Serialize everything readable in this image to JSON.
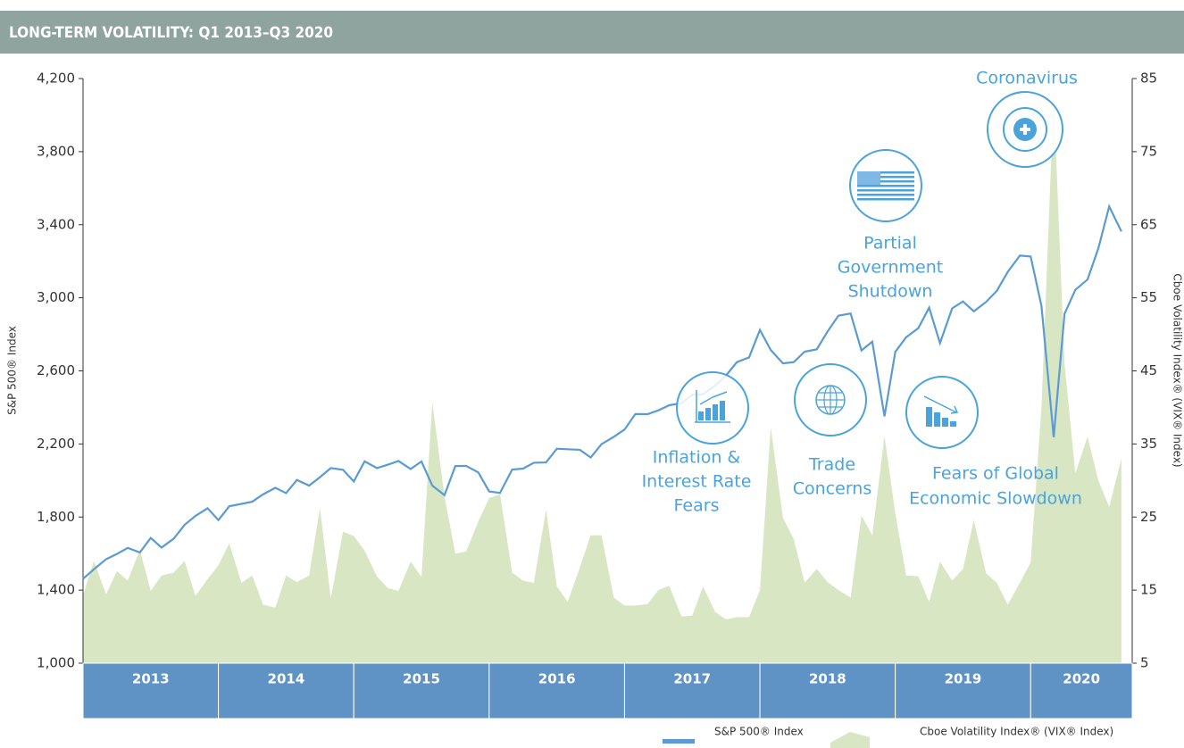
{
  "chart_data": {
    "type": "line",
    "title": "LONG-TERM VOLATILITY: Q1 2013–Q3 2020",
    "ylabel": "S&P 500® Index",
    "y2label": "Cboe Volatility Index® (VIX® Index)",
    "categories": [
      "2013",
      "2014",
      "2015",
      "2016",
      "2017",
      "2018",
      "2019",
      "2020"
    ],
    "x": [
      2013.0,
      2013.08,
      2013.17,
      2013.25,
      2013.33,
      2013.42,
      2013.5,
      2013.58,
      2013.67,
      2013.75,
      2013.83,
      2013.92,
      2014.0,
      2014.08,
      2014.17,
      2014.25,
      2014.33,
      2014.42,
      2014.5,
      2014.58,
      2014.67,
      2014.75,
      2014.83,
      2014.92,
      2015.0,
      2015.08,
      2015.17,
      2015.25,
      2015.33,
      2015.42,
      2015.5,
      2015.58,
      2015.67,
      2015.75,
      2015.83,
      2015.92,
      2016.0,
      2016.08,
      2016.17,
      2016.25,
      2016.33,
      2016.42,
      2016.5,
      2016.58,
      2016.67,
      2016.75,
      2016.83,
      2016.92,
      2017.0,
      2017.08,
      2017.17,
      2017.25,
      2017.33,
      2017.42,
      2017.5,
      2017.58,
      2017.67,
      2017.75,
      2017.83,
      2017.92,
      2018.0,
      2018.08,
      2018.17,
      2018.25,
      2018.33,
      2018.42,
      2018.5,
      2018.58,
      2018.67,
      2018.75,
      2018.83,
      2018.92,
      2019.0,
      2019.08,
      2019.17,
      2019.25,
      2019.33,
      2019.42,
      2019.5,
      2019.58,
      2019.67,
      2019.75,
      2019.83,
      2019.92,
      2020.0,
      2020.08,
      2020.17,
      2020.25,
      2020.33,
      2020.42,
      2020.5,
      2020.58,
      2020.67
    ],
    "xlim": [
      2013,
      2020.75
    ],
    "series": [
      {
        "name": "S&P 500® Index",
        "color": "#5a9bd3",
        "axis": "y",
        "values": [
          1462,
          1514,
          1569,
          1598,
          1631,
          1606,
          1686,
          1633,
          1682,
          1757,
          1806,
          1848,
          1783,
          1859,
          1872,
          1884,
          1924,
          1960,
          1931,
          2003,
          1972,
          2018,
          2068,
          2059,
          1995,
          2105,
          2068,
          2086,
          2107,
          2063,
          2104,
          1972,
          1920,
          2079,
          2080,
          2044,
          1940,
          1932,
          2060,
          2065,
          2097,
          2099,
          2174,
          2171,
          2168,
          2126,
          2199,
          2239,
          2279,
          2364,
          2363,
          2384,
          2412,
          2423,
          2470,
          2472,
          2519,
          2575,
          2648,
          2674,
          2824,
          2714,
          2641,
          2648,
          2705,
          2718,
          2816,
          2902,
          2914,
          2712,
          2760,
          2351,
          2704,
          2784,
          2834,
          2946,
          2752,
          2942,
          2980,
          2926,
          2977,
          3038,
          3141,
          3231,
          3226,
          2954,
          2237,
          2912,
          3044,
          3100,
          3271,
          3500,
          3363
        ]
      },
      {
        "name": "Cboe Volatility Index® (VIX® Index)",
        "color": "#d9e6c3",
        "axis": "y2",
        "type": "area",
        "values": [
          14.3,
          19.0,
          14.4,
          17.6,
          16.3,
          20.5,
          14.9,
          17.0,
          17.4,
          19.0,
          14.2,
          16.5,
          18.4,
          21.4,
          16.0,
          17.0,
          13.0,
          12.6,
          17.0,
          16.1,
          17.0,
          26.3,
          13.8,
          23.0,
          22.4,
          20.4,
          16.9,
          15.3,
          14.9,
          18.9,
          16.8,
          40.7,
          27.8,
          20.0,
          20.3,
          24.4,
          27.6,
          28.1,
          17.4,
          16.3,
          16.0,
          26.0,
          15.5,
          13.4,
          18.1,
          22.5,
          22.5,
          14.0,
          12.9,
          12.9,
          13.1,
          15.0,
          15.6,
          11.4,
          11.5,
          15.5,
          12.0,
          11.0,
          11.3,
          11.3,
          15.0,
          37.3,
          24.9,
          22.0,
          16.0,
          17.9,
          16.1,
          15.0,
          14.0,
          25.2,
          22.5,
          36.1,
          25.5,
          17.0,
          16.9,
          13.4,
          18.9,
          16.3,
          17.9,
          24.6,
          17.3,
          16.0,
          13.0,
          16.0,
          18.8,
          40.1,
          82.7,
          46.0,
          31.0,
          36.0,
          30.0,
          26.4,
          33.0
        ]
      }
    ],
    "ylim": [
      1000,
      4200
    ],
    "yticks": [
      {
        "value": 1000,
        "label": "1,000"
      },
      {
        "value": 1400,
        "label": "1,400"
      },
      {
        "value": 1800,
        "label": "1,800"
      },
      {
        "value": 2200,
        "label": "2,200"
      },
      {
        "value": 2600,
        "label": "2,600"
      },
      {
        "value": 3000,
        "label": "3,000"
      },
      {
        "value": 3400,
        "label": "3,400"
      },
      {
        "value": 3800,
        "label": "3,800"
      },
      {
        "value": 4200,
        "label": "4,200"
      }
    ],
    "y2lim": [
      5,
      85
    ],
    "y2ticks": [
      5,
      15,
      25,
      35,
      45,
      55,
      65,
      75,
      85
    ],
    "annotations": [
      {
        "lines": [
          "Coronavirus"
        ]
      },
      {
        "lines": [
          "Partial",
          "Government",
          "Shutdown"
        ]
      },
      {
        "lines": [
          "Inflation &",
          "Interest Rate",
          "Fears"
        ]
      },
      {
        "lines": [
          "Trade",
          "Concerns"
        ]
      },
      {
        "lines": [
          "Fears of Global",
          "Economic Slowdown"
        ]
      }
    ]
  }
}
